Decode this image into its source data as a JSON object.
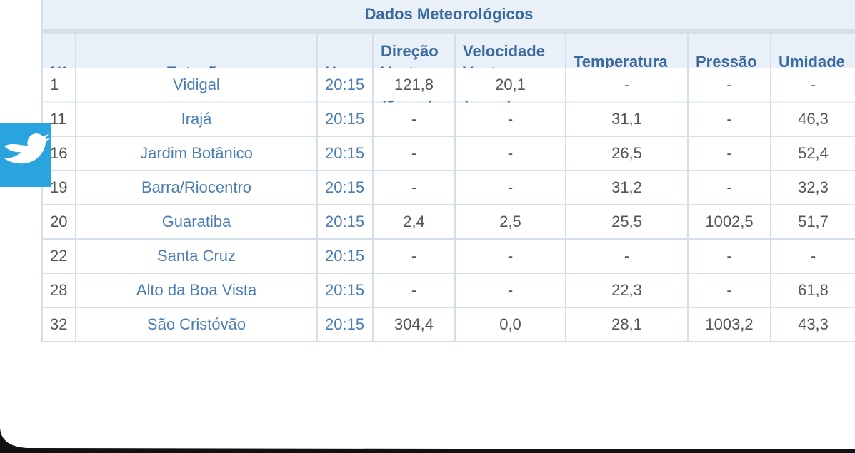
{
  "table": {
    "title": "Dados Meteorológicos",
    "columns": [
      "N°",
      "Estação",
      "Hora",
      "Direção Vento (graus)",
      "Velocidade Vento (Km/h)",
      "Temperatura (celsius)",
      "Pressão (hPa)",
      "Umidade (%)"
    ],
    "rows": [
      [
        "1",
        "Vidigal",
        "20:15",
        "121,8",
        "20,1",
        "-",
        "-",
        "-"
      ],
      [
        "11",
        "Irajá",
        "20:15",
        "-",
        "-",
        "31,1",
        "-",
        "46,3"
      ],
      [
        "16",
        "Jardim Botânico",
        "20:15",
        "-",
        "-",
        "26,5",
        "-",
        "52,4"
      ],
      [
        "19",
        "Barra/Riocentro",
        "20:15",
        "-",
        "-",
        "31,2",
        "-",
        "32,3"
      ],
      [
        "20",
        "Guaratiba",
        "20:15",
        "2,4",
        "2,5",
        "25,5",
        "1002,5",
        "51,7"
      ],
      [
        "22",
        "Santa Cruz",
        "20:15",
        "-",
        "-",
        "-",
        "-",
        "-"
      ],
      [
        "28",
        "Alto da Boa Vista",
        "20:15",
        "-",
        "-",
        "22,3",
        "-",
        "61,8"
      ],
      [
        "32",
        "São Cristóvão",
        "20:15",
        "304,4",
        "0,0",
        "28,1",
        "1003,2",
        "43,3"
      ]
    ]
  }
}
